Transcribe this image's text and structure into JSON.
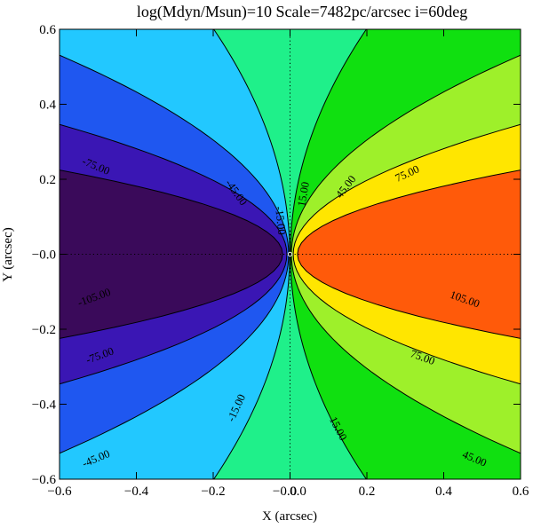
{
  "chart_data": {
    "type": "contour",
    "title": "log(Mdyn/Msun)=10  Scale=7482pc/arcsec  i=60deg",
    "xlabel": "X (arcsec)",
    "ylabel": "Y (arcsec)",
    "xlim": [
      -0.6,
      0.6
    ],
    "ylim": [
      -0.6,
      0.6
    ],
    "x_ticks": [
      "−0.6",
      "−0.4",
      "−0.2",
      "−0.0",
      "0.0",
      "0.2",
      "0.4",
      "0.6"
    ],
    "y_ticks": [
      "−0.6",
      "−0.4",
      "−0.2",
      "−0.0",
      "0.2",
      "0.4",
      "0.6"
    ],
    "levels": [
      -105,
      -75,
      -45,
      -15,
      15,
      45,
      75,
      105
    ],
    "bands": [
      {
        "range": "below -105",
        "color": "#3a0a5a"
      },
      {
        "range": "-105 to -75",
        "color": "#3a16b4"
      },
      {
        "range": "-75 to -45",
        "color": "#1f57f0"
      },
      {
        "range": "-45 to -15",
        "color": "#22c8ff"
      },
      {
        "range": "-15 to 15",
        "color": "#1ff08a"
      },
      {
        "range": "15 to 45",
        "color": "#10e010"
      },
      {
        "range": "45 to 75",
        "color": "#9ef02a"
      },
      {
        "range": "75 to 105",
        "color": "#ffe600"
      },
      {
        "range": "above 105",
        "color": "#ff5a0a"
      }
    ],
    "contour_labels": [
      {
        "text": "-105.00",
        "x": -0.51,
        "y": -0.115
      },
      {
        "text": "-75.00",
        "x": -0.505,
        "y": 0.235
      },
      {
        "text": "-75.00",
        "x": -0.495,
        "y": -0.27
      },
      {
        "text": "-45.00",
        "x": -0.14,
        "y": 0.165
      },
      {
        "text": "-45.00",
        "x": -0.505,
        "y": -0.545
      },
      {
        "text": "-15.00",
        "x": -0.025,
        "y": 0.09
      },
      {
        "text": "-15.00",
        "x": -0.14,
        "y": -0.41
      },
      {
        "text": "15.00",
        "x": 0.035,
        "y": 0.16
      },
      {
        "text": "15.00",
        "x": 0.125,
        "y": -0.465
      },
      {
        "text": "45.00",
        "x": 0.145,
        "y": 0.18
      },
      {
        "text": "45.00",
        "x": 0.48,
        "y": -0.545
      },
      {
        "text": "75.00",
        "x": 0.305,
        "y": 0.215
      },
      {
        "text": "75.00",
        "x": 0.345,
        "y": -0.275
      },
      {
        "text": "105.00",
        "x": 0.455,
        "y": -0.12
      }
    ],
    "reference_lines": "dotted lines at x=0 and y=0"
  }
}
